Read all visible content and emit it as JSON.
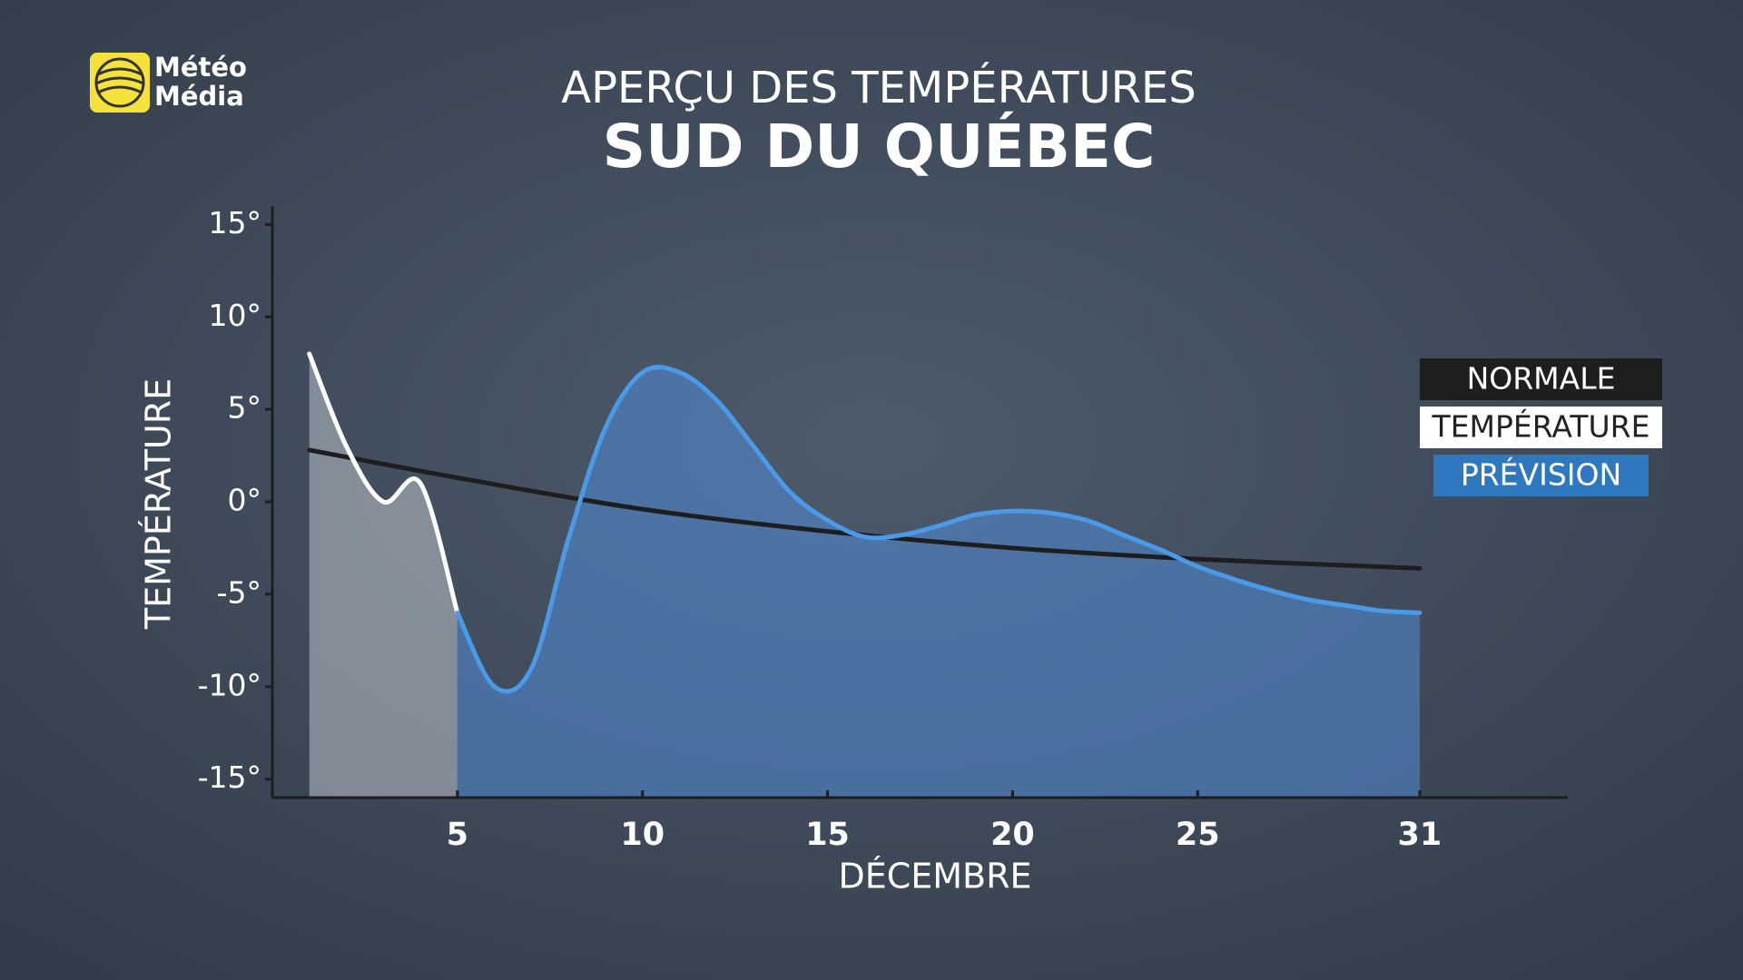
{
  "brand": [
    "Météo",
    "Média"
  ],
  "chart_data": {
    "type": "line",
    "title": "APERÇU DES TEMPÉRATURES",
    "subtitle": "SUD DU QUÉBEC",
    "y_label": "TEMPÉRATURE",
    "x_label": "DÉCEMBRE",
    "xlim": [
      0,
      35
    ],
    "ylim": [
      -16,
      16
    ],
    "xticks": [
      5,
      10,
      15,
      20,
      25,
      31
    ],
    "yticks": [
      {
        "value": 15,
        "label": "15°"
      },
      {
        "value": 10,
        "label": "10°"
      },
      {
        "value": 5,
        "label": "5°"
      },
      {
        "value": 0,
        "label": "0°"
      },
      {
        "value": -5,
        "label": "-5°"
      },
      {
        "value": -10,
        "label": "-10°"
      },
      {
        "value": -15,
        "label": "-15°"
      }
    ],
    "legend_position": "right",
    "series": [
      {
        "name": "NORMALE",
        "color": "#1e1e1e",
        "area": false,
        "x": [
          1,
          5,
          10,
          15,
          20,
          25,
          31
        ],
        "values": [
          2.8,
          1.3,
          -0.4,
          -1.6,
          -2.5,
          -3.1,
          -3.6
        ]
      },
      {
        "name": "TEMPÉRATURE",
        "color": "#ffffff",
        "area": true,
        "x": [
          1,
          2,
          3,
          4,
          5
        ],
        "values": [
          8,
          3,
          0,
          1,
          -6
        ]
      },
      {
        "name": "PRÉVISION",
        "color": "#4a9ae8",
        "area": true,
        "x": [
          5,
          6,
          7,
          8,
          9,
          10,
          11,
          12,
          13,
          14,
          15,
          16,
          17,
          18,
          19,
          20,
          21,
          22,
          23,
          24,
          25,
          26,
          27,
          28,
          29,
          30,
          31
        ],
        "values": [
          -6,
          -10,
          -9,
          -2,
          4,
          7,
          7,
          5.5,
          3,
          0.5,
          -1,
          -1.9,
          -1.8,
          -1.3,
          -0.7,
          -0.5,
          -0.6,
          -1,
          -1.8,
          -2.6,
          -3.5,
          -4.2,
          -4.8,
          -5.3,
          -5.6,
          -5.9,
          -6
        ]
      }
    ]
  }
}
